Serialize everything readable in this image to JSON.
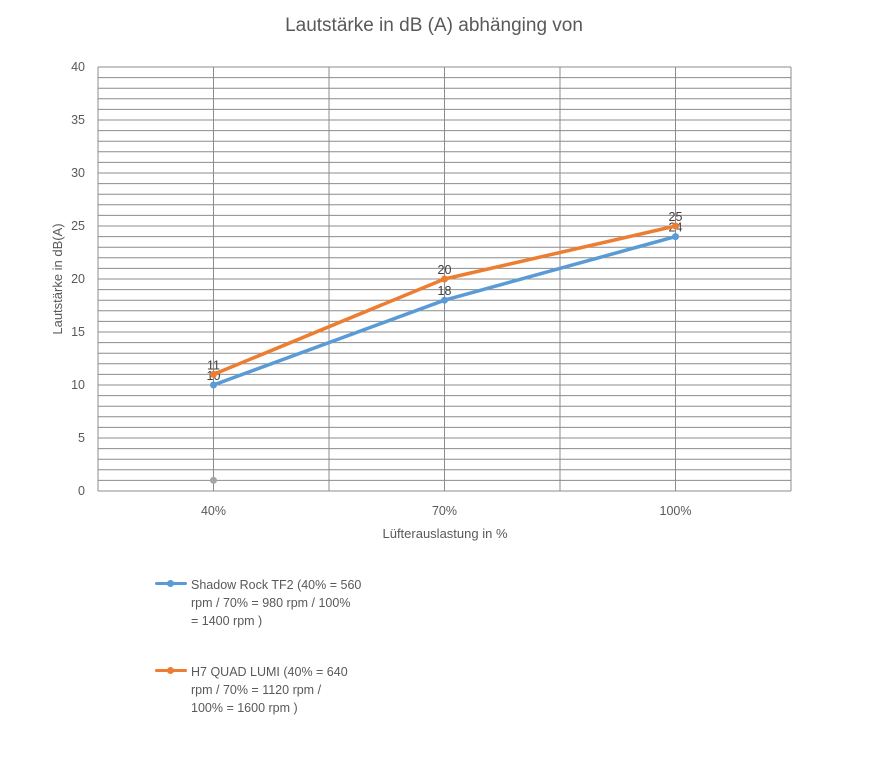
{
  "chart_data": {
    "type": "line",
    "title": "Lautstärke in dB (A) abhänging von",
    "xlabel": "Lüfterauslastung in %",
    "ylabel": "Lautstärke in dB(A)",
    "categories": [
      "40%",
      "70%",
      "100%"
    ],
    "ylim": [
      0,
      40
    ],
    "y_ticks": [
      0,
      5,
      10,
      15,
      20,
      25,
      30,
      35,
      40
    ],
    "grid": true,
    "legend_position": "bottom-left",
    "series": [
      {
        "name": "Shadow Rock TF2 (40% = 560 rpm / 70% = 980 rpm / 100% = 1400 rpm )",
        "lines": [
          "Shadow Rock TF2 (40% = 560",
          "rpm / 70% = 980 rpm / 100%",
          "= 1400 rpm )"
        ],
        "color": "#5b9bd5",
        "values": [
          10,
          18,
          24
        ],
        "labels": [
          "10",
          "18",
          "24"
        ]
      },
      {
        "name": "H7 QUAD LUMI (40% = 640 rpm / 70% = 1120 rpm / 100% = 1600 rpm )",
        "lines": [
          "H7 QUAD LUMI (40% = 640",
          "rpm / 70% = 1120 rpm /",
          "100% = 1600 rpm )"
        ],
        "color": "#ed7d31",
        "values": [
          11,
          20,
          25
        ],
        "labels": [
          "11",
          "20",
          "25"
        ]
      }
    ],
    "extra_points": [
      {
        "category": "40%",
        "value": 1,
        "color": "#a5a5a5"
      }
    ]
  }
}
